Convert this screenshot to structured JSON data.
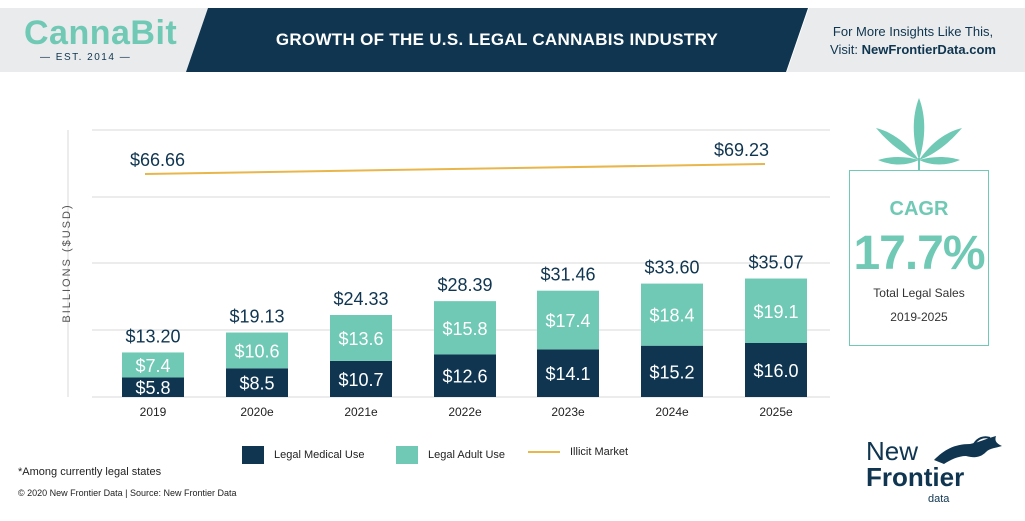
{
  "header": {
    "logo_text": "CannaBit",
    "logo_est": "— EST. 2014 —",
    "title": "GROWTH OF THE U.S. LEGAL CANNABIS INDUSTRY",
    "promo_line1": "For More Insights Like This,",
    "promo_line2_prefix": "Visit: ",
    "promo_line2_link": "NewFrontierData.com"
  },
  "chart_data": {
    "type": "bar",
    "stacked": true,
    "ylabel": "BILLIONS ($USD)",
    "categories": [
      "2019",
      "2020e",
      "2021e",
      "2022e",
      "2023e",
      "2024e",
      "2025e"
    ],
    "series": [
      {
        "name": "Legal Medical Use",
        "values": [
          5.8,
          8.5,
          10.7,
          12.6,
          14.1,
          15.2,
          16.0
        ],
        "labels": [
          "$5.8",
          "$8.5",
          "$10.7",
          "$12.6",
          "$14.1",
          "$15.2",
          "$16.0"
        ],
        "color": "#0f3550"
      },
      {
        "name": "Legal Adult Use",
        "values": [
          7.4,
          10.6,
          13.6,
          15.8,
          17.4,
          18.4,
          19.1
        ],
        "labels": [
          "$7.4",
          "$10.6",
          "$13.6",
          "$15.8",
          "$17.4",
          "$18.4",
          "$19.1"
        ],
        "color": "#6fc9b4"
      }
    ],
    "totals": [
      13.2,
      19.13,
      24.33,
      28.39,
      31.46,
      33.6,
      35.07
    ],
    "total_labels": [
      "$13.20",
      "$19.13",
      "$24.33",
      "$28.39",
      "$31.46",
      "$33.60",
      "$35.07"
    ],
    "line": {
      "name": "Illicit Market",
      "color": "#e8b64b",
      "start_value": 66.66,
      "end_value": 69.23,
      "start_label": "$66.66",
      "end_label": "$69.23"
    },
    "ylim": [
      0,
      72
    ],
    "grid": true,
    "legend_position": "bottom"
  },
  "cagr": {
    "label": "CAGR",
    "value": "17.7%",
    "sub1": "Total Legal Sales",
    "sub2": "2019-2025"
  },
  "legend": {
    "medical": "Legal Medical Use",
    "adult": "Legal Adult Use",
    "illicit": "Illicit Market"
  },
  "footnote": "*Among currently legal states",
  "footer": "© 2020 New Frontier Data | Source: New Frontier Data",
  "brand": {
    "line1": "New",
    "line2": "Frontier",
    "line3": "data"
  },
  "colors": {
    "navy": "#0f3550",
    "teal": "#6fc9b4",
    "gold": "#e8b64b"
  }
}
